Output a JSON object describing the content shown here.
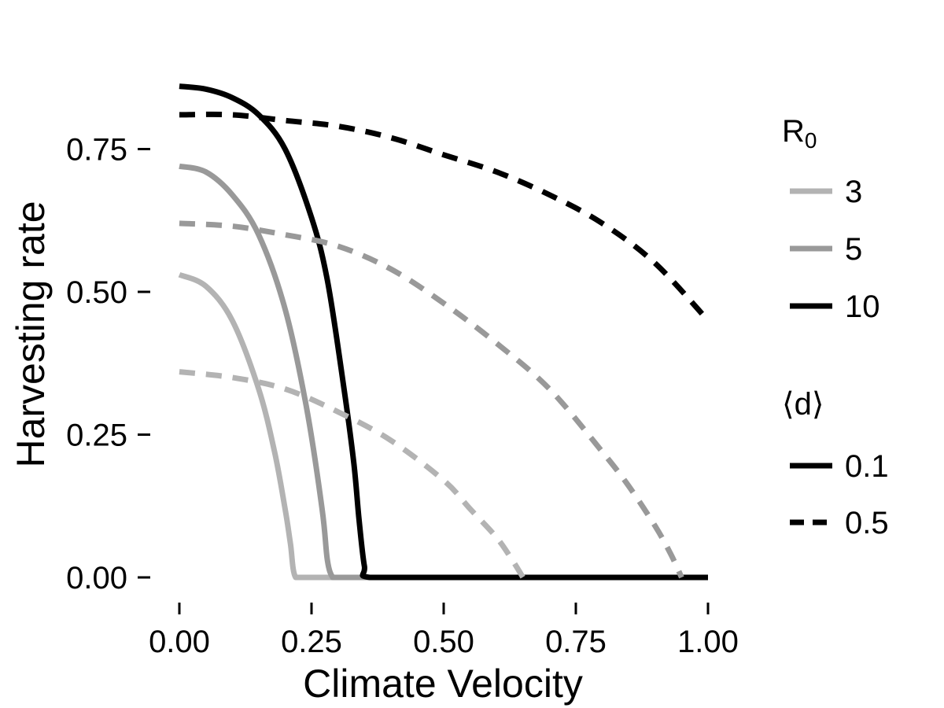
{
  "chart_data": {
    "type": "line",
    "xlabel": "Climate Velocity",
    "ylabel": "Harvesting rate",
    "xlim": [
      0,
      1
    ],
    "ylim": [
      -0.04,
      0.92
    ],
    "x_ticks": [
      0,
      0.25,
      0.5,
      0.75,
      1.0
    ],
    "x_tick_labels": [
      "0.00",
      "0.25",
      "0.50",
      "0.75",
      "1.00"
    ],
    "y_ticks": [
      0,
      0.25,
      0.5,
      0.75
    ],
    "y_tick_labels": [
      "0.00",
      "0.25",
      "0.50",
      "0.75"
    ],
    "grid": false,
    "legend_position": "right",
    "legends": [
      {
        "title": "R",
        "title_subscript": "0",
        "kind": "color",
        "entries": [
          {
            "label": "3",
            "color": "#b3b3b3"
          },
          {
            "label": "5",
            "color": "#999999"
          },
          {
            "label": "10",
            "color": "#000000"
          }
        ]
      },
      {
        "title": "⟨d⟩",
        "kind": "linetype",
        "entries": [
          {
            "label": "0.1",
            "dash": "solid"
          },
          {
            "label": "0.5",
            "dash": "dashed"
          }
        ]
      }
    ],
    "series": [
      {
        "R0": "3",
        "d": "0.1",
        "color": "#b3b3b3",
        "dash": "solid",
        "x": [
          0,
          0.05,
          0.1,
          0.15,
          0.18,
          0.2,
          0.21,
          0.22,
          0.25,
          0.3,
          0.35,
          0.4,
          0.45,
          0.5
        ],
        "y": [
          0.53,
          0.51,
          0.45,
          0.33,
          0.22,
          0.12,
          0.06,
          0,
          0,
          0,
          0,
          0,
          0,
          0
        ]
      },
      {
        "R0": "5",
        "d": "0.1",
        "color": "#999999",
        "dash": "solid",
        "x": [
          0,
          0.05,
          0.1,
          0.15,
          0.2,
          0.24,
          0.27,
          0.28,
          0.29,
          0.3,
          0.35,
          0.4,
          0.45,
          0.5
        ],
        "y": [
          0.72,
          0.71,
          0.67,
          0.6,
          0.47,
          0.3,
          0.12,
          0.03,
          0,
          0,
          0,
          0,
          0,
          0
        ]
      },
      {
        "R0": "10",
        "d": "0.1",
        "color": "#000000",
        "dash": "solid",
        "x": [
          0,
          0.05,
          0.1,
          0.15,
          0.2,
          0.25,
          0.28,
          0.31,
          0.33,
          0.34,
          0.35,
          0.36,
          0.5,
          0.75,
          1.0
        ],
        "y": [
          0.86,
          0.855,
          0.84,
          0.81,
          0.75,
          0.63,
          0.52,
          0.34,
          0.2,
          0.1,
          0.02,
          0,
          0,
          0,
          0
        ]
      },
      {
        "R0": "3",
        "d": "0.5",
        "color": "#b3b3b3",
        "dash": "dashed",
        "x": [
          0,
          0.1,
          0.2,
          0.3,
          0.4,
          0.5,
          0.55,
          0.6,
          0.63,
          0.65
        ],
        "y": [
          0.36,
          0.35,
          0.33,
          0.29,
          0.24,
          0.17,
          0.12,
          0.07,
          0.03,
          0
        ]
      },
      {
        "R0": "5",
        "d": "0.5",
        "color": "#999999",
        "dash": "dashed",
        "x": [
          0,
          0.1,
          0.2,
          0.3,
          0.4,
          0.5,
          0.6,
          0.7,
          0.8,
          0.85,
          0.9,
          0.93,
          0.95
        ],
        "y": [
          0.62,
          0.615,
          0.6,
          0.58,
          0.54,
          0.48,
          0.41,
          0.33,
          0.22,
          0.16,
          0.09,
          0.04,
          0
        ]
      },
      {
        "R0": "10",
        "d": "0.5",
        "color": "#000000",
        "dash": "dashed",
        "x": [
          0,
          0.1,
          0.2,
          0.3,
          0.4,
          0.5,
          0.6,
          0.7,
          0.8,
          0.9,
          1.0
        ],
        "y": [
          0.81,
          0.81,
          0.8,
          0.79,
          0.77,
          0.74,
          0.71,
          0.67,
          0.62,
          0.55,
          0.45
        ]
      }
    ]
  }
}
